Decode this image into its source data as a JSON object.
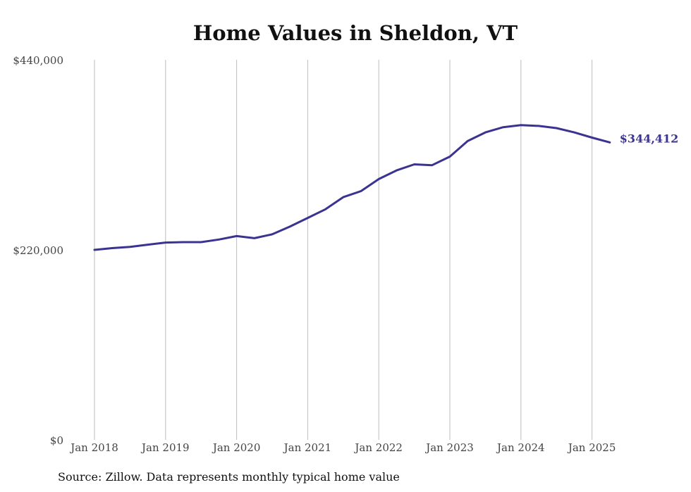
{
  "chart_data": {
    "type": "line",
    "title": "Home Values in Sheldon, VT",
    "xlabel": "",
    "ylabel": "",
    "x_ticks": [
      "Jan 2018",
      "Jan 2019",
      "Jan 2020",
      "Jan 2021",
      "Jan 2022",
      "Jan 2023",
      "Jan 2024",
      "Jan 2025"
    ],
    "y_ticks": [
      "$0",
      "$220,000",
      "$440,000"
    ],
    "ylim": [
      0,
      440000
    ],
    "grid": "vertical",
    "line_color": "#3b3391",
    "end_label": "$344,412",
    "series": [
      {
        "x": [
          "2018-01",
          "2018-04",
          "2018-07",
          "2018-10",
          "2019-01",
          "2019-04",
          "2019-07",
          "2019-10",
          "2020-01",
          "2020-04",
          "2020-07",
          "2020-10",
          "2021-01",
          "2021-04",
          "2021-07",
          "2021-10",
          "2022-01",
          "2022-04",
          "2022-07",
          "2022-10",
          "2023-01",
          "2023-04",
          "2023-07",
          "2023-10",
          "2024-01",
          "2024-04",
          "2024-07",
          "2024-10",
          "2025-01",
          "2025-04"
        ],
        "values": [
          220000,
          222000,
          223500,
          226000,
          228500,
          229000,
          229000,
          232000,
          236000,
          233500,
          238000,
          247000,
          257000,
          267000,
          281000,
          288000,
          302000,
          312000,
          319000,
          318000,
          328000,
          346000,
          356000,
          362000,
          364500,
          363500,
          361000,
          356000,
          350000,
          344412
        ]
      }
    ]
  },
  "source": "Source: Zillow. Data represents monthly typical home value"
}
